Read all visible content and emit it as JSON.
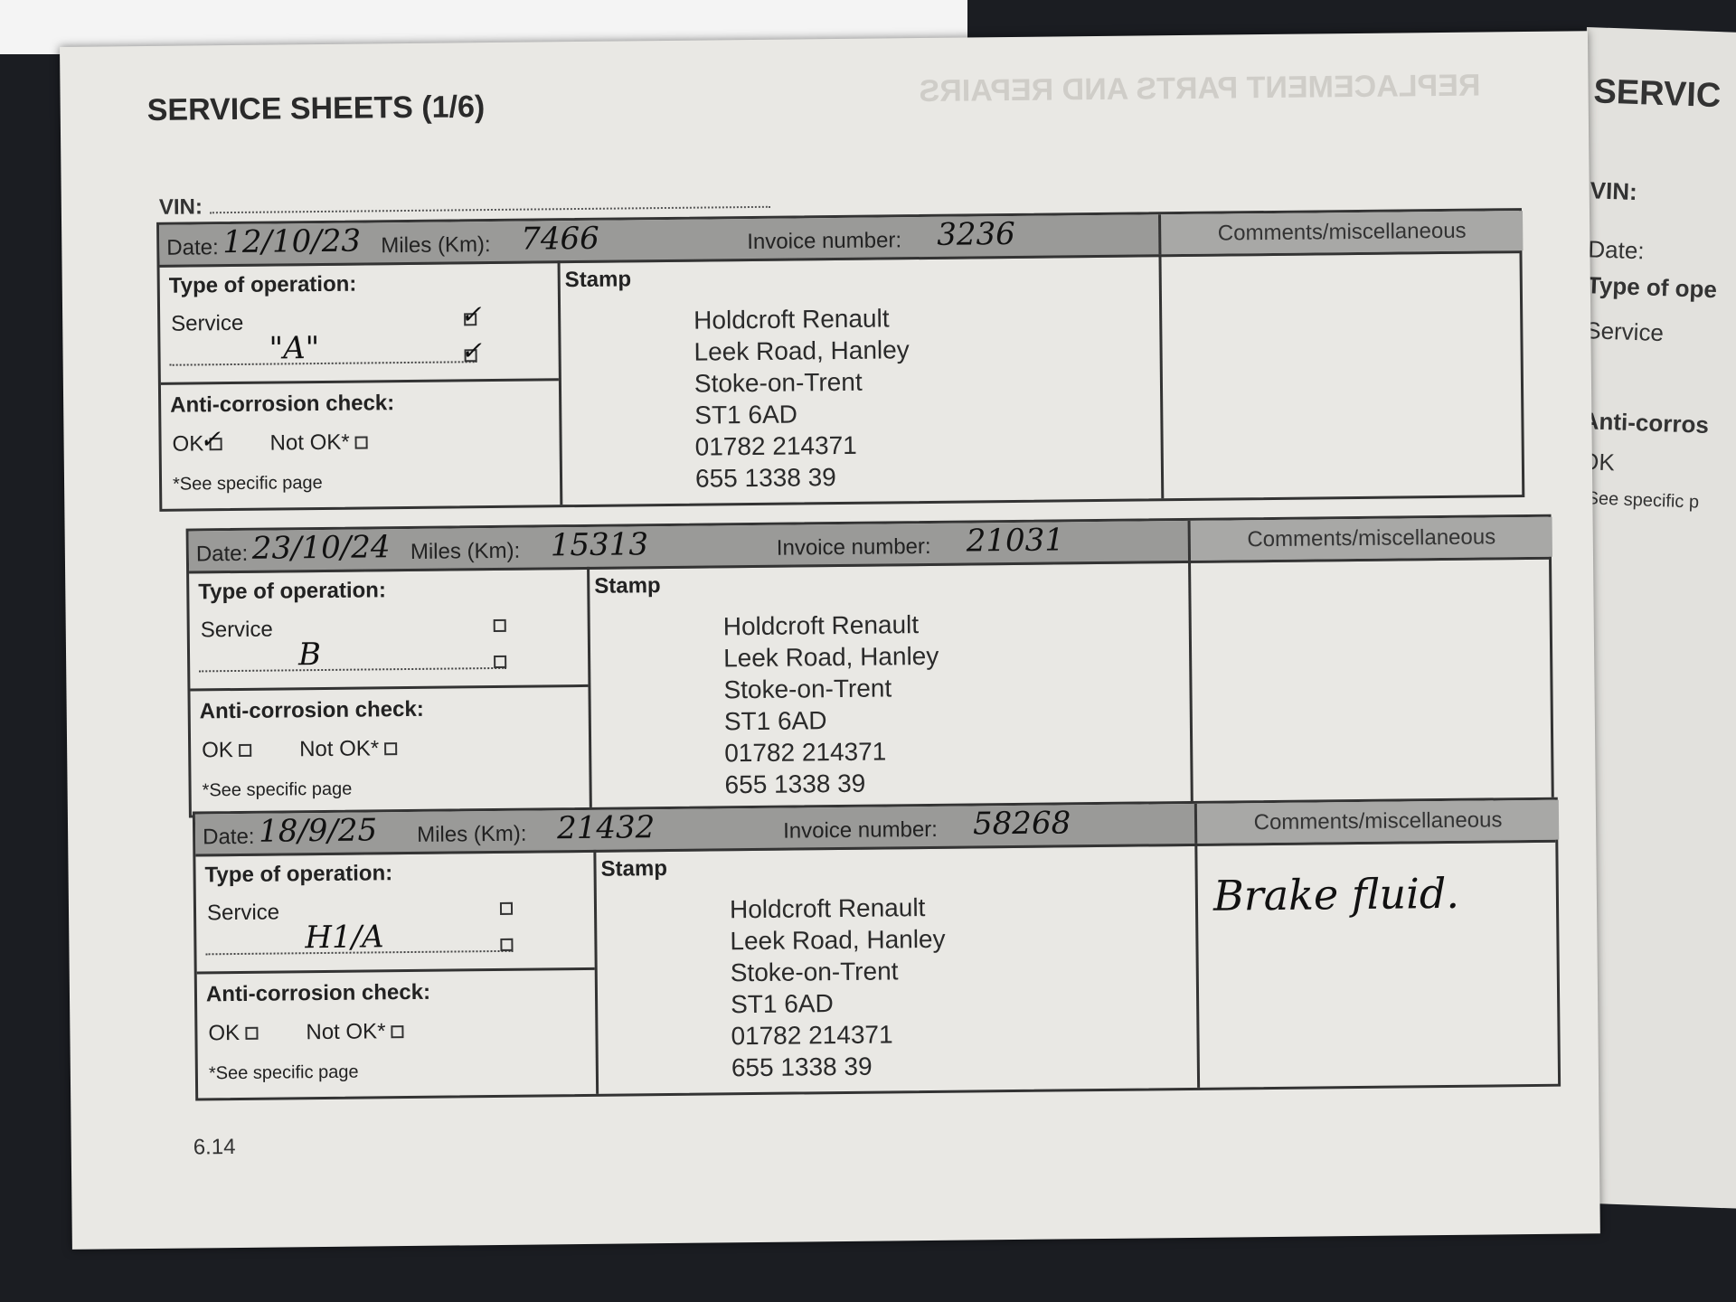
{
  "page": {
    "title": "SERVICE SHEETS (1/6)",
    "bleed_through": "REPLACEMENT PARTS AND REPAIRS",
    "vin_label": "VIN:",
    "page_number": "6.14"
  },
  "labels": {
    "date": "Date:",
    "miles": "Miles (Km):",
    "invoice": "Invoice number:",
    "comments": "Comments/miscellaneous",
    "type": "Type of operation:",
    "service": "Service",
    "stamp": "Stamp",
    "anti": "Anti-corrosion check:",
    "ok": "OK",
    "notok": "Not OK*",
    "see": "*See specific page"
  },
  "entries": [
    {
      "date": "12/10/23",
      "miles": "7466",
      "invoice": "3236",
      "service_note": "\"A\"",
      "service_checked": true,
      "note_checked": true,
      "ok_checked": true,
      "comments": "",
      "stamp": [
        "Holdcroft Renault",
        "Leek Road, Hanley",
        "Stoke-on-Trent",
        "ST1 6AD",
        "01782 214371",
        "655 1338 39"
      ]
    },
    {
      "date": "23/10/24",
      "miles": "15313",
      "invoice": "21031",
      "service_note": "B",
      "service_checked": false,
      "note_checked": false,
      "ok_checked": false,
      "comments": "",
      "stamp": [
        "Holdcroft Renault",
        "Leek Road, Hanley",
        "Stoke-on-Trent",
        "ST1 6AD",
        "01782 214371",
        "655 1338 39"
      ]
    },
    {
      "date": "18/9/25",
      "miles": "21432",
      "invoice": "58268",
      "service_note": "H1/A",
      "service_checked": false,
      "note_checked": false,
      "ok_checked": false,
      "comments": "Brake fluid.",
      "stamp": [
        "Holdcroft Renault",
        "Leek Road, Hanley",
        "Stoke-on-Trent",
        "ST1 6AD",
        "01782 214371",
        "655 1338 39"
      ]
    }
  ],
  "right_page": {
    "title": "SERVIC",
    "vin": "VIN:",
    "date": "Date:",
    "type": "Type of ope",
    "service": "Service",
    "anti": "Anti-corros",
    "ok": "OK",
    "see": "*See specific p"
  }
}
